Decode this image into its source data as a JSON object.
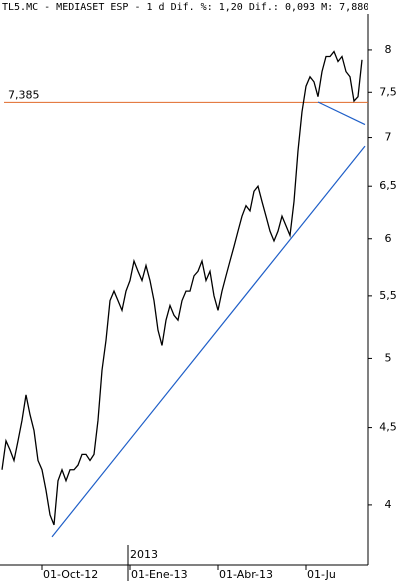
{
  "chart_data": {
    "type": "line",
    "title": "TL5.MC - MEDIASET ESP -  1 d Dif. %: 1,20 Dif.: 0,093 M: 7,880",
    "categories": [
      null,
      null,
      null,
      null,
      null,
      null,
      null,
      null,
      null,
      null,
      "01-Oct-12",
      null,
      null,
      null,
      null,
      null,
      null,
      null,
      null,
      null,
      null,
      null,
      null,
      null,
      null,
      null,
      null,
      null,
      null,
      null,
      null,
      null,
      "01-Ene-13",
      null,
      null,
      null,
      null,
      null,
      null,
      null,
      null,
      null,
      null,
      null,
      null,
      null,
      null,
      null,
      null,
      null,
      null,
      null,
      null,
      null,
      "01-Abr-13",
      null,
      null,
      null,
      null,
      null,
      null,
      null,
      null,
      null,
      null,
      null,
      null,
      null,
      null,
      null,
      null,
      null,
      null,
      null,
      null,
      null,
      "01-Ju",
      null,
      null,
      null,
      null,
      null,
      null,
      null,
      null,
      null,
      null,
      null,
      null,
      null,
      null
    ],
    "year_label": "2013",
    "series": [
      {
        "color": "#000000",
        "values": [
          4.22,
          4.41,
          4.35,
          4.28,
          4.41,
          4.55,
          4.73,
          4.59,
          4.48,
          4.28,
          4.22,
          4.09,
          3.94,
          3.88,
          4.15,
          4.22,
          4.15,
          4.22,
          4.22,
          4.25,
          4.32,
          4.32,
          4.28,
          4.32,
          4.55,
          4.91,
          5.14,
          5.46,
          5.54,
          5.46,
          5.38,
          5.54,
          5.63,
          5.8,
          5.71,
          5.63,
          5.76,
          5.63,
          5.46,
          5.22,
          5.1,
          5.3,
          5.42,
          5.34,
          5.3,
          5.46,
          5.54,
          5.54,
          5.67,
          5.71,
          5.8,
          5.63,
          5.71,
          5.5,
          5.38,
          5.54,
          5.67,
          5.8,
          5.93,
          6.07,
          6.21,
          6.31,
          6.26,
          6.45,
          6.5,
          6.35,
          6.21,
          6.07,
          5.98,
          6.07,
          6.21,
          6.12,
          6.03,
          6.35,
          6.86,
          7.28,
          7.57,
          7.68,
          7.62,
          7.45,
          7.74,
          7.92,
          7.92,
          7.98,
          7.86,
          7.92,
          7.74,
          7.68,
          7.4,
          7.45,
          7.88
        ]
      }
    ],
    "ylim": [
      3.65,
      8.45
    ],
    "log_y": true,
    "yticks": [
      4,
      {
        "value": 4.5,
        "label": "4,5"
      },
      5,
      {
        "value": 5.5,
        "label": "5,5"
      },
      6,
      {
        "value": 6.5,
        "label": "6,5"
      },
      7,
      {
        "value": 7.5,
        "label": "7,5"
      },
      8
    ],
    "hline": {
      "value": 7.385,
      "label": "7,385",
      "color": "#e06a2a"
    },
    "trendlines": [
      {
        "color": "#1f5fc8",
        "x": [
          12.5,
          90.75
        ],
        "y": [
          3.81,
          6.91
        ]
      },
      {
        "color": "#1f5fc8",
        "x": [
          79,
          90.75
        ],
        "y": [
          7.39,
          7.14
        ]
      }
    ]
  }
}
